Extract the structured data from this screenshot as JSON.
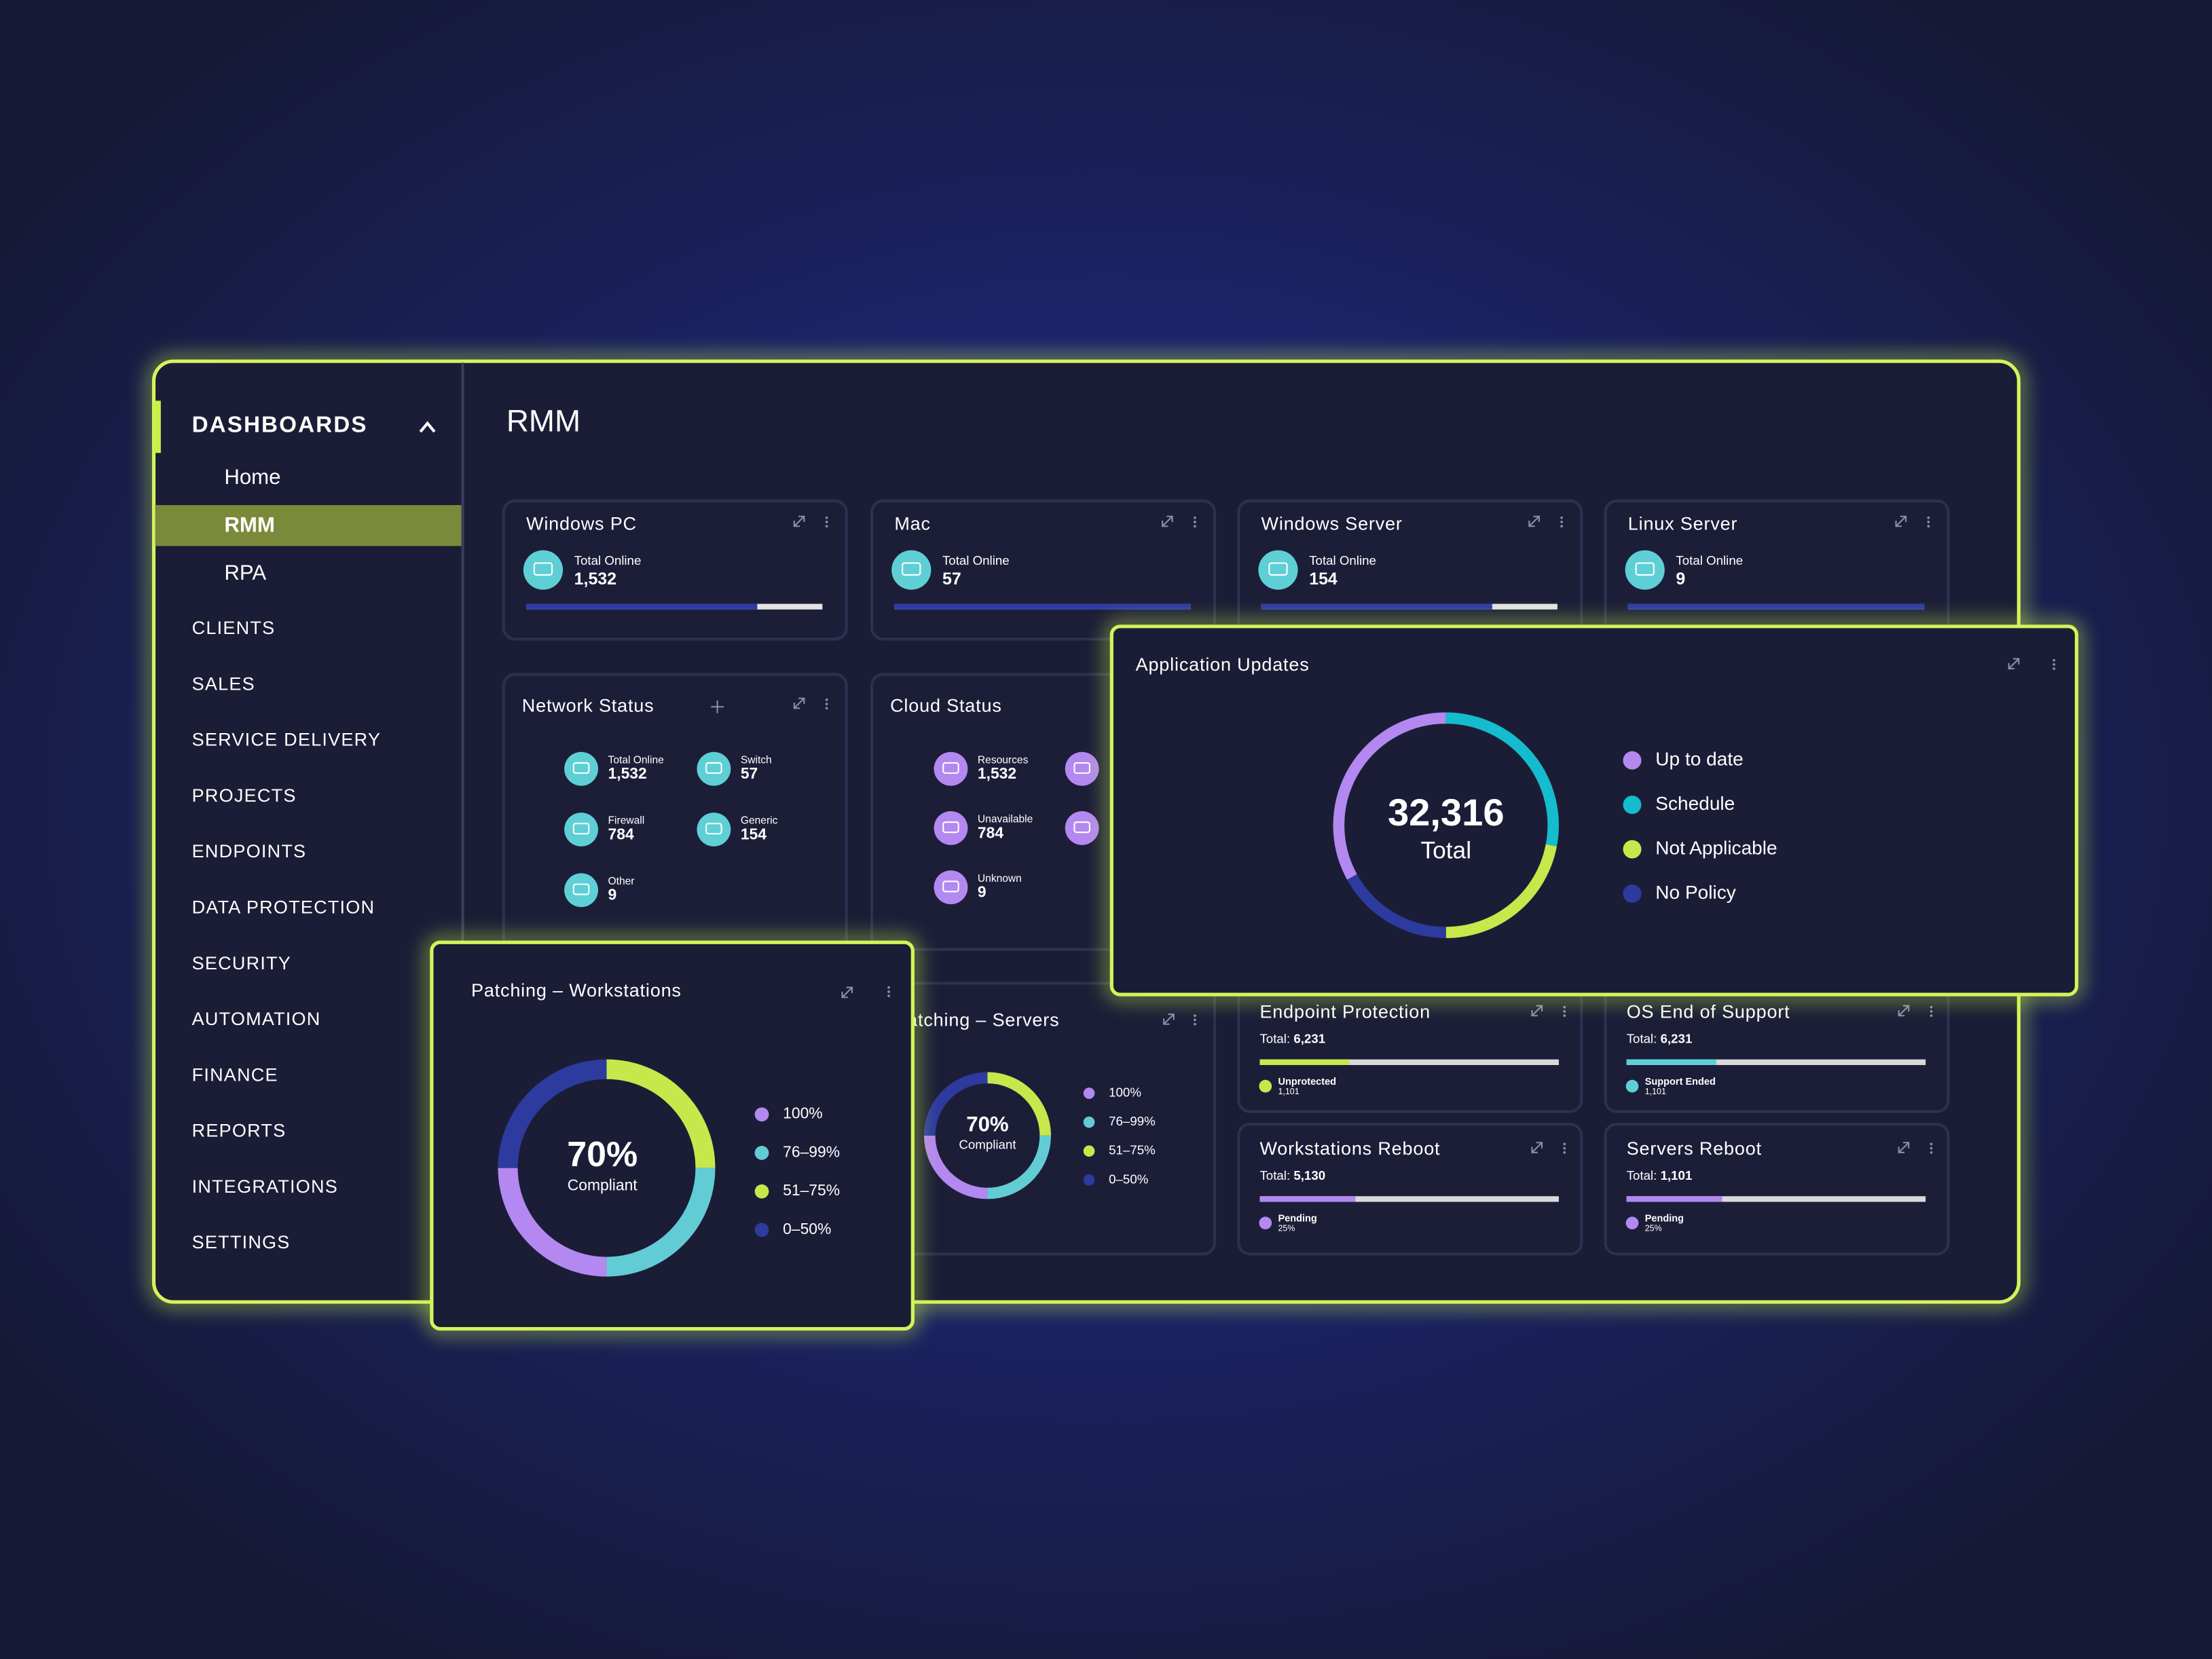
{
  "sidebar": {
    "heading": "DASHBOARDS",
    "subitems": [
      "Home",
      "RMM",
      "RPA"
    ],
    "selected": 1,
    "items": [
      "CLIENTS",
      "SALES",
      "SERVICE DELIVERY",
      "PROJECTS",
      "ENDPOINTS",
      "DATA PROTECTION",
      "SECURITY",
      "AUTOMATION",
      "FINANCE",
      "REPORTS",
      "INTEGRATIONS",
      "SETTINGS"
    ]
  },
  "page_title": "RMM",
  "device_cards": [
    {
      "title": "Windows PC",
      "label": "Total Online",
      "value": "1,532",
      "bar": 78
    },
    {
      "title": "Mac",
      "label": "Total Online",
      "value": "57",
      "bar": 100
    },
    {
      "title": "Windows Server",
      "label": "Total Online",
      "value": "154",
      "bar": 78
    },
    {
      "title": "Linux Server",
      "label": "Total Online",
      "value": "9",
      "bar": 100
    }
  ],
  "network_status": {
    "title": "Network Status",
    "items": [
      {
        "label": "Total Online",
        "value": "1,532"
      },
      {
        "label": "Switch",
        "value": "57"
      },
      {
        "label": "Firewall",
        "value": "784"
      },
      {
        "label": "Generic",
        "value": "154"
      },
      {
        "label": "Other",
        "value": "9"
      }
    ]
  },
  "cloud_status": {
    "title": "Cloud Status",
    "items": [
      {
        "label": "Resources",
        "value": "1,532"
      },
      {
        "label": "Unavailable",
        "value": "784"
      },
      {
        "label": "Unknown",
        "value": "9"
      }
    ]
  },
  "summary_cards": [
    {
      "title": "Endpoint Protection",
      "total_label": "Total:",
      "total": "6,231",
      "bar": 30,
      "color": "#c6e84b",
      "legend": "Unprotected",
      "legend_value": "1,101"
    },
    {
      "title": "OS End of Support",
      "total_label": "Total:",
      "total": "6,231",
      "bar": 30,
      "color": "#5fcfd6",
      "legend": "Support Ended",
      "legend_value": "1,101"
    },
    {
      "title": "Workstations Reboot",
      "total_label": "Total:",
      "total": "5,130",
      "bar": 32,
      "color": "#b388f0",
      "legend": "Pending",
      "legend_value": "25%"
    },
    {
      "title": "Servers Reboot",
      "total_label": "Total:",
      "total": "1,101",
      "bar": 32,
      "color": "#b388f0",
      "legend": "Pending",
      "legend_value": "25%"
    }
  ],
  "patching_servers": {
    "title": "Patching – Servers",
    "center": "70%",
    "center_label": "Compliant",
    "clockwise_order": [
      2,
      1,
      0,
      3
    ],
    "segments": [
      {
        "name": "100%",
        "color": "#b388f0",
        "value": 25
      },
      {
        "name": "76–99%",
        "color": "#62ccd4",
        "value": 25
      },
      {
        "name": "51–75%",
        "color": "#c6e84b",
        "value": 25
      },
      {
        "name": "0–50%",
        "color": "#2d3a9e",
        "value": 25
      }
    ]
  },
  "application_updates": {
    "title": "Application Updates",
    "center": "32,316",
    "center_label": "Total",
    "clockwise_order": [
      1,
      2,
      3,
      0
    ],
    "segments": [
      {
        "name": "Up to date",
        "color": "#b388f0",
        "value": 33
      },
      {
        "name": "Schedule",
        "color": "#14bccd",
        "value": 28
      },
      {
        "name": "Not Applicable",
        "color": "#c6e84b",
        "value": 22
      },
      {
        "name": "No Policy",
        "color": "#2d3a9e",
        "value": 17
      }
    ]
  },
  "patching_workstations": {
    "title": "Patching – Workstations",
    "center": "70%",
    "center_label": "Compliant",
    "clockwise_order": [
      2,
      1,
      0,
      3
    ],
    "segments": [
      {
        "name": "100%",
        "color": "#b388f0",
        "value": 25
      },
      {
        "name": "76–99%",
        "color": "#62ccd4",
        "value": 25
      },
      {
        "name": "51–75%",
        "color": "#c6e84b",
        "value": 25
      },
      {
        "name": "0–50%",
        "color": "#2d3a9e",
        "value": 25
      }
    ]
  }
}
